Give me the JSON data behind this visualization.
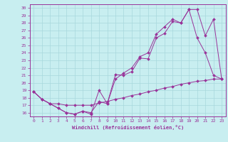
{
  "xlabel": "Windchill (Refroidissement éolien,°C)",
  "xlim": [
    -0.5,
    23.5
  ],
  "ylim": [
    15.5,
    30.5
  ],
  "yticks": [
    16,
    17,
    18,
    19,
    20,
    21,
    22,
    23,
    24,
    25,
    26,
    27,
    28,
    29,
    30
  ],
  "xticks": [
    0,
    1,
    2,
    3,
    4,
    5,
    6,
    7,
    8,
    9,
    10,
    11,
    12,
    13,
    14,
    15,
    16,
    17,
    18,
    19,
    20,
    21,
    22,
    23
  ],
  "bg_color": "#c8eef0",
  "grid_color": "#a8d8dc",
  "line_color": "#993399",
  "line1_x": [
    0,
    1,
    2,
    3,
    4,
    5,
    6,
    7,
    8,
    9,
    10,
    11,
    12,
    13,
    14,
    15,
    16,
    17,
    18,
    19,
    20,
    21,
    22,
    23
  ],
  "line1_y": [
    18.8,
    17.8,
    17.2,
    16.6,
    16.0,
    15.8,
    16.2,
    15.8,
    19.0,
    17.2,
    21.1,
    21.0,
    21.5,
    23.3,
    23.2,
    26.0,
    26.6,
    28.2,
    28.0,
    29.8,
    29.8,
    26.3,
    28.5,
    20.5
  ],
  "line2_x": [
    0,
    1,
    2,
    3,
    4,
    5,
    6,
    7,
    8,
    9,
    10,
    11,
    12,
    13,
    14,
    15,
    16,
    17,
    18,
    19,
    20,
    21,
    22,
    23
  ],
  "line2_y": [
    18.8,
    17.8,
    17.2,
    16.6,
    16.0,
    15.8,
    16.2,
    16.0,
    17.5,
    17.2,
    20.5,
    21.3,
    22.0,
    23.5,
    24.0,
    26.5,
    27.5,
    28.5,
    28.0,
    29.8,
    26.0,
    24.0,
    21.0,
    20.5
  ],
  "line3_x": [
    0,
    1,
    2,
    3,
    4,
    5,
    6,
    7,
    8,
    9,
    10,
    11,
    12,
    13,
    14,
    15,
    16,
    17,
    18,
    19,
    20,
    21,
    22,
    23
  ],
  "line3_y": [
    18.8,
    17.8,
    17.2,
    17.2,
    17.0,
    17.0,
    17.0,
    17.0,
    17.3,
    17.5,
    17.8,
    18.0,
    18.3,
    18.5,
    18.8,
    19.0,
    19.3,
    19.5,
    19.8,
    20.0,
    20.2,
    20.3,
    20.5,
    20.5
  ]
}
